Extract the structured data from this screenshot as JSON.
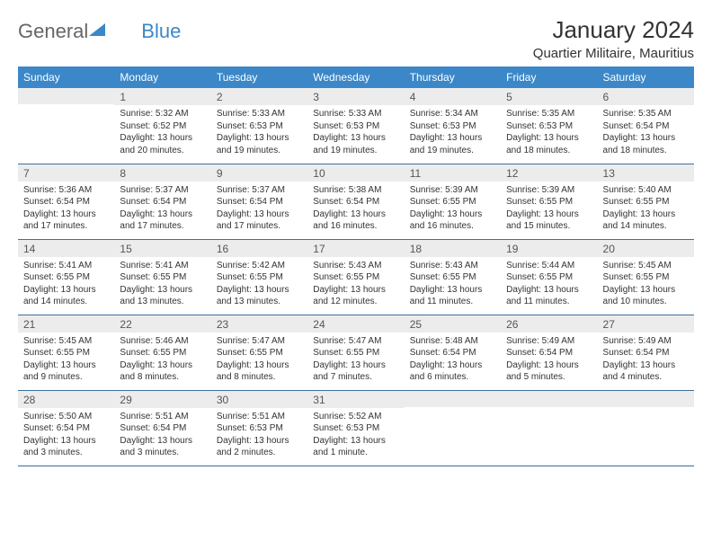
{
  "logo": {
    "text1": "General",
    "text2": "Blue"
  },
  "title": "January 2024",
  "subtitle": "Quartier Militaire, Mauritius",
  "colors": {
    "header_bg": "#3b87c8",
    "daynum_bg": "#ececec",
    "row_border": "#3b6f9c"
  },
  "day_headers": [
    "Sunday",
    "Monday",
    "Tuesday",
    "Wednesday",
    "Thursday",
    "Friday",
    "Saturday"
  ],
  "weeks": [
    [
      {
        "num": "",
        "sunrise": "",
        "sunset": "",
        "daylight": ""
      },
      {
        "num": "1",
        "sunrise": "Sunrise: 5:32 AM",
        "sunset": "Sunset: 6:52 PM",
        "daylight": "Daylight: 13 hours and 20 minutes."
      },
      {
        "num": "2",
        "sunrise": "Sunrise: 5:33 AM",
        "sunset": "Sunset: 6:53 PM",
        "daylight": "Daylight: 13 hours and 19 minutes."
      },
      {
        "num": "3",
        "sunrise": "Sunrise: 5:33 AM",
        "sunset": "Sunset: 6:53 PM",
        "daylight": "Daylight: 13 hours and 19 minutes."
      },
      {
        "num": "4",
        "sunrise": "Sunrise: 5:34 AM",
        "sunset": "Sunset: 6:53 PM",
        "daylight": "Daylight: 13 hours and 19 minutes."
      },
      {
        "num": "5",
        "sunrise": "Sunrise: 5:35 AM",
        "sunset": "Sunset: 6:53 PM",
        "daylight": "Daylight: 13 hours and 18 minutes."
      },
      {
        "num": "6",
        "sunrise": "Sunrise: 5:35 AM",
        "sunset": "Sunset: 6:54 PM",
        "daylight": "Daylight: 13 hours and 18 minutes."
      }
    ],
    [
      {
        "num": "7",
        "sunrise": "Sunrise: 5:36 AM",
        "sunset": "Sunset: 6:54 PM",
        "daylight": "Daylight: 13 hours and 17 minutes."
      },
      {
        "num": "8",
        "sunrise": "Sunrise: 5:37 AM",
        "sunset": "Sunset: 6:54 PM",
        "daylight": "Daylight: 13 hours and 17 minutes."
      },
      {
        "num": "9",
        "sunrise": "Sunrise: 5:37 AM",
        "sunset": "Sunset: 6:54 PM",
        "daylight": "Daylight: 13 hours and 17 minutes."
      },
      {
        "num": "10",
        "sunrise": "Sunrise: 5:38 AM",
        "sunset": "Sunset: 6:54 PM",
        "daylight": "Daylight: 13 hours and 16 minutes."
      },
      {
        "num": "11",
        "sunrise": "Sunrise: 5:39 AM",
        "sunset": "Sunset: 6:55 PM",
        "daylight": "Daylight: 13 hours and 16 minutes."
      },
      {
        "num": "12",
        "sunrise": "Sunrise: 5:39 AM",
        "sunset": "Sunset: 6:55 PM",
        "daylight": "Daylight: 13 hours and 15 minutes."
      },
      {
        "num": "13",
        "sunrise": "Sunrise: 5:40 AM",
        "sunset": "Sunset: 6:55 PM",
        "daylight": "Daylight: 13 hours and 14 minutes."
      }
    ],
    [
      {
        "num": "14",
        "sunrise": "Sunrise: 5:41 AM",
        "sunset": "Sunset: 6:55 PM",
        "daylight": "Daylight: 13 hours and 14 minutes."
      },
      {
        "num": "15",
        "sunrise": "Sunrise: 5:41 AM",
        "sunset": "Sunset: 6:55 PM",
        "daylight": "Daylight: 13 hours and 13 minutes."
      },
      {
        "num": "16",
        "sunrise": "Sunrise: 5:42 AM",
        "sunset": "Sunset: 6:55 PM",
        "daylight": "Daylight: 13 hours and 13 minutes."
      },
      {
        "num": "17",
        "sunrise": "Sunrise: 5:43 AM",
        "sunset": "Sunset: 6:55 PM",
        "daylight": "Daylight: 13 hours and 12 minutes."
      },
      {
        "num": "18",
        "sunrise": "Sunrise: 5:43 AM",
        "sunset": "Sunset: 6:55 PM",
        "daylight": "Daylight: 13 hours and 11 minutes."
      },
      {
        "num": "19",
        "sunrise": "Sunrise: 5:44 AM",
        "sunset": "Sunset: 6:55 PM",
        "daylight": "Daylight: 13 hours and 11 minutes."
      },
      {
        "num": "20",
        "sunrise": "Sunrise: 5:45 AM",
        "sunset": "Sunset: 6:55 PM",
        "daylight": "Daylight: 13 hours and 10 minutes."
      }
    ],
    [
      {
        "num": "21",
        "sunrise": "Sunrise: 5:45 AM",
        "sunset": "Sunset: 6:55 PM",
        "daylight": "Daylight: 13 hours and 9 minutes."
      },
      {
        "num": "22",
        "sunrise": "Sunrise: 5:46 AM",
        "sunset": "Sunset: 6:55 PM",
        "daylight": "Daylight: 13 hours and 8 minutes."
      },
      {
        "num": "23",
        "sunrise": "Sunrise: 5:47 AM",
        "sunset": "Sunset: 6:55 PM",
        "daylight": "Daylight: 13 hours and 8 minutes."
      },
      {
        "num": "24",
        "sunrise": "Sunrise: 5:47 AM",
        "sunset": "Sunset: 6:55 PM",
        "daylight": "Daylight: 13 hours and 7 minutes."
      },
      {
        "num": "25",
        "sunrise": "Sunrise: 5:48 AM",
        "sunset": "Sunset: 6:54 PM",
        "daylight": "Daylight: 13 hours and 6 minutes."
      },
      {
        "num": "26",
        "sunrise": "Sunrise: 5:49 AM",
        "sunset": "Sunset: 6:54 PM",
        "daylight": "Daylight: 13 hours and 5 minutes."
      },
      {
        "num": "27",
        "sunrise": "Sunrise: 5:49 AM",
        "sunset": "Sunset: 6:54 PM",
        "daylight": "Daylight: 13 hours and 4 minutes."
      }
    ],
    [
      {
        "num": "28",
        "sunrise": "Sunrise: 5:50 AM",
        "sunset": "Sunset: 6:54 PM",
        "daylight": "Daylight: 13 hours and 3 minutes."
      },
      {
        "num": "29",
        "sunrise": "Sunrise: 5:51 AM",
        "sunset": "Sunset: 6:54 PM",
        "daylight": "Daylight: 13 hours and 3 minutes."
      },
      {
        "num": "30",
        "sunrise": "Sunrise: 5:51 AM",
        "sunset": "Sunset: 6:53 PM",
        "daylight": "Daylight: 13 hours and 2 minutes."
      },
      {
        "num": "31",
        "sunrise": "Sunrise: 5:52 AM",
        "sunset": "Sunset: 6:53 PM",
        "daylight": "Daylight: 13 hours and 1 minute."
      },
      {
        "num": "",
        "sunrise": "",
        "sunset": "",
        "daylight": ""
      },
      {
        "num": "",
        "sunrise": "",
        "sunset": "",
        "daylight": ""
      },
      {
        "num": "",
        "sunrise": "",
        "sunset": "",
        "daylight": ""
      }
    ]
  ]
}
